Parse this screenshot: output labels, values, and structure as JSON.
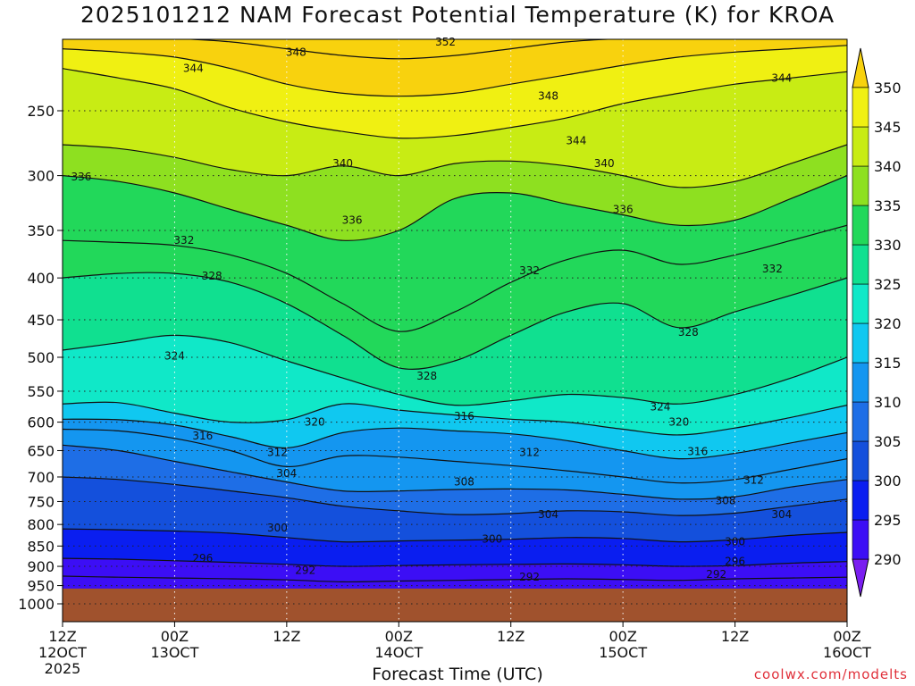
{
  "chart_data": {
    "type": "contour",
    "title": "2025101212 NAM Forecast Potential Temperature (K) for KROA",
    "xlabel": "Forecast Time (UTC)",
    "credit": "coolwx.com/modelts",
    "y_axis": {
      "scale": "log",
      "direction": "inverted",
      "range": [
        200,
        1050
      ],
      "ticks": [
        250,
        300,
        350,
        400,
        450,
        500,
        550,
        600,
        650,
        700,
        750,
        800,
        850,
        900,
        950,
        1000
      ],
      "gridlines": "dotted"
    },
    "x_axis": {
      "range_hours": [
        0,
        84
      ],
      "ticks": [
        {
          "hour": 0,
          "line1": "12Z",
          "line2": "12OCT",
          "line3": "2025"
        },
        {
          "hour": 12,
          "line1": "00Z",
          "line2": "13OCT",
          "line3": ""
        },
        {
          "hour": 24,
          "line1": "12Z",
          "line2": "",
          "line3": ""
        },
        {
          "hour": 36,
          "line1": "00Z",
          "line2": "14OCT",
          "line3": ""
        },
        {
          "hour": 48,
          "line1": "12Z",
          "line2": "",
          "line3": ""
        },
        {
          "hour": 60,
          "line1": "00Z",
          "line2": "15OCT",
          "line3": ""
        },
        {
          "hour": 72,
          "line1": "12Z",
          "line2": "",
          "line3": ""
        },
        {
          "hour": 84,
          "line1": "00Z",
          "line2": "16OCT",
          "line3": ""
        }
      ]
    },
    "surface_pressure_hpa": 958,
    "colorbar": {
      "ticks": [
        290,
        295,
        300,
        305,
        310,
        315,
        320,
        325,
        330,
        335,
        340,
        345,
        350
      ],
      "colors": [
        "#7a1ef0",
        "#3c0ef5",
        "#0a1ef0",
        "#1450dc",
        "#1e6ee6",
        "#1496f0",
        "#10c8f0",
        "#10e8c8",
        "#10e090",
        "#22d85a",
        "#8ee020",
        "#c8ec14",
        "#f0f012",
        "#f8d20e"
      ]
    },
    "isentropes": [
      {
        "theta": 292,
        "p": [
          925,
          928,
          930,
          932,
          935,
          940,
          938,
          936,
          934,
          932,
          934,
          936,
          932,
          930,
          928
        ]
      },
      {
        "theta": 296,
        "p": [
          880,
          882,
          886,
          890,
          895,
          900,
          898,
          896,
          895,
          894,
          896,
          900,
          898,
          892,
          888
        ]
      },
      {
        "theta": 300,
        "p": [
          810,
          812,
          815,
          820,
          830,
          840,
          838,
          836,
          834,
          830,
          832,
          840,
          835,
          825,
          818
        ]
      },
      {
        "theta": 304,
        "p": [
          700,
          705,
          715,
          728,
          742,
          760,
          770,
          778,
          776,
          770,
          772,
          780,
          775,
          760,
          745
        ]
      },
      {
        "theta": 308,
        "p": [
          640,
          650,
          670,
          690,
          710,
          728,
          728,
          725,
          724,
          726,
          735,
          745,
          740,
          720,
          705
        ]
      },
      {
        "theta": 312,
        "p": [
          612,
          615,
          628,
          650,
          680,
          660,
          662,
          670,
          678,
          688,
          700,
          712,
          705,
          685,
          665
        ]
      },
      {
        "theta": 316,
        "p": [
          595,
          596,
          605,
          625,
          645,
          618,
          610,
          615,
          620,
          632,
          650,
          665,
          655,
          636,
          618
        ]
      },
      {
        "theta": 320,
        "p": [
          570,
          568,
          585,
          600,
          596,
          570,
          580,
          588,
          595,
          600,
          612,
          622,
          610,
          592,
          572
        ]
      },
      {
        "theta": 324,
        "p": [
          490,
          480,
          470,
          480,
          505,
          530,
          555,
          572,
          565,
          555,
          560,
          570,
          555,
          530,
          500
        ]
      },
      {
        "theta": 328,
        "p": [
          400,
          395,
          395,
          405,
          430,
          470,
          515,
          505,
          470,
          440,
          430,
          460,
          440,
          420,
          400
        ]
      },
      {
        "theta": 332,
        "p": [
          360,
          362,
          365,
          375,
          395,
          430,
          465,
          440,
          405,
          380,
          370,
          385,
          375,
          360,
          345
        ]
      },
      {
        "theta": 336,
        "p": [
          300,
          305,
          315,
          330,
          345,
          360,
          350,
          320,
          315,
          325,
          335,
          345,
          340,
          320,
          300
        ]
      },
      {
        "theta": 340,
        "p": [
          275,
          278,
          285,
          295,
          300,
          292,
          300,
          290,
          288,
          292,
          300,
          310,
          305,
          290,
          275
        ]
      },
      {
        "theta": 344,
        "p": [
          222,
          228,
          235,
          248,
          258,
          265,
          270,
          268,
          262,
          255,
          245,
          238,
          232,
          228,
          224
        ]
      },
      {
        "theta": 348,
        "p": [
          210,
          212,
          215,
          222,
          232,
          238,
          240,
          238,
          232,
          226,
          220,
          215,
          212,
          210,
          208
        ]
      },
      {
        "theta": 352,
        "p": [
          203,
          203,
          204,
          206,
          210,
          214,
          216,
          214,
          210,
          206,
          204,
          203,
          203,
          203,
          203
        ]
      }
    ],
    "isentrope_x_hours": [
      0,
      6,
      12,
      18,
      24,
      30,
      36,
      42,
      48,
      54,
      60,
      66,
      72,
      78,
      84
    ],
    "contour_labels": [
      {
        "text": "352",
        "hour": 41,
        "p": 206
      },
      {
        "text": "348",
        "hour": 25,
        "p": 212
      },
      {
        "text": "348",
        "hour": 52,
        "p": 240
      },
      {
        "text": "344",
        "hour": 14,
        "p": 222
      },
      {
        "text": "344",
        "hour": 55,
        "p": 272
      },
      {
        "text": "344",
        "hour": 77,
        "p": 228
      },
      {
        "text": "340",
        "hour": 30,
        "p": 290
      },
      {
        "text": "340",
        "hour": 58,
        "p": 290
      },
      {
        "text": "336",
        "hour": 2,
        "p": 301
      },
      {
        "text": "336",
        "hour": 31,
        "p": 340
      },
      {
        "text": "336",
        "hour": 60,
        "p": 330
      },
      {
        "text": "332",
        "hour": 13,
        "p": 360
      },
      {
        "text": "332",
        "hour": 50,
        "p": 392
      },
      {
        "text": "332",
        "hour": 76,
        "p": 390
      },
      {
        "text": "328",
        "hour": 16,
        "p": 398
      },
      {
        "text": "328",
        "hour": 39,
        "p": 527
      },
      {
        "text": "328",
        "hour": 67,
        "p": 466
      },
      {
        "text": "324",
        "hour": 12,
        "p": 498
      },
      {
        "text": "324",
        "hour": 64,
        "p": 575
      },
      {
        "text": "320",
        "hour": 27,
        "p": 600
      },
      {
        "text": "320",
        "hour": 66,
        "p": 600
      },
      {
        "text": "316",
        "hour": 15,
        "p": 624
      },
      {
        "text": "316",
        "hour": 43,
        "p": 590
      },
      {
        "text": "316",
        "hour": 68,
        "p": 652
      },
      {
        "text": "312",
        "hour": 23,
        "p": 653
      },
      {
        "text": "312",
        "hour": 50,
        "p": 653
      },
      {
        "text": "312",
        "hour": 74,
        "p": 706
      },
      {
        "text": "308",
        "hour": 43,
        "p": 710
      },
      {
        "text": "308",
        "hour": 71,
        "p": 748
      },
      {
        "text": "304",
        "hour": 24,
        "p": 693
      },
      {
        "text": "304",
        "hour": 52,
        "p": 778
      },
      {
        "text": "304",
        "hour": 77,
        "p": 778
      },
      {
        "text": "300",
        "hour": 23,
        "p": 808
      },
      {
        "text": "300",
        "hour": 46,
        "p": 834
      },
      {
        "text": "300",
        "hour": 72,
        "p": 840
      },
      {
        "text": "296",
        "hour": 15,
        "p": 880
      },
      {
        "text": "296",
        "hour": 72,
        "p": 888
      },
      {
        "text": "292",
        "hour": 26,
        "p": 910
      },
      {
        "text": "292",
        "hour": 50,
        "p": 928
      },
      {
        "text": "292",
        "hour": 70,
        "p": 920
      }
    ]
  }
}
